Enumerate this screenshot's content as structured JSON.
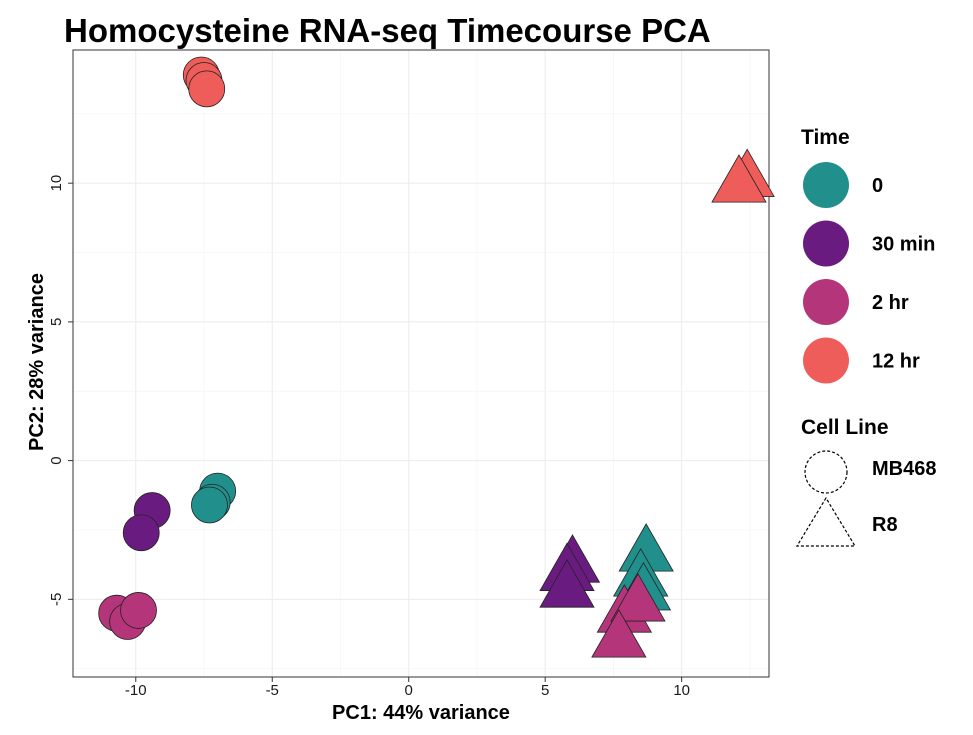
{
  "chart_data": {
    "type": "scatter",
    "title": "Homocysteine RNA-seq Timecourse PCA",
    "xlabel": "PC1: 44% variance",
    "ylabel": "PC2: 28% variance",
    "xlim": [
      -12.3,
      13.2
    ],
    "ylim": [
      -7.8,
      14.8
    ],
    "xticks": [
      -10,
      -5,
      0,
      5,
      10
    ],
    "xtick_labels": [
      "-10",
      "-5",
      "0",
      "5",
      "10"
    ],
    "yticks": [
      -5,
      0,
      5,
      10
    ],
    "ytick_labels": [
      "-5",
      "0",
      "5",
      "10"
    ],
    "grid": true,
    "colors": {
      "0": "#21908C",
      "30 min": "#6A1B80",
      "2 hr": "#B5357A",
      "12 hr": "#EE5D5A"
    },
    "legend": {
      "placement": "right",
      "time_title": "Time",
      "time_entries": [
        "0",
        "30 min",
        "2 hr",
        "12 hr"
      ],
      "shape_title": "Cell Line",
      "shape_entries": [
        {
          "label": "MB468",
          "shape": "circle"
        },
        {
          "label": "R8",
          "shape": "triangle"
        }
      ]
    },
    "points": [
      {
        "time": "12 hr",
        "cell_line": "MB468",
        "x": -7.6,
        "y": 13.9
      },
      {
        "time": "12 hr",
        "cell_line": "MB468",
        "x": -7.5,
        "y": 13.7
      },
      {
        "time": "12 hr",
        "cell_line": "MB468",
        "x": -7.4,
        "y": 13.4
      },
      {
        "time": "12 hr",
        "cell_line": "R8",
        "x": 12.4,
        "y": 10.1
      },
      {
        "time": "12 hr",
        "cell_line": "R8",
        "x": 12.1,
        "y": 9.9
      },
      {
        "time": "0",
        "cell_line": "MB468",
        "x": -7.0,
        "y": -1.1
      },
      {
        "time": "0",
        "cell_line": "MB468",
        "x": -7.2,
        "y": -1.5
      },
      {
        "time": "0",
        "cell_line": "MB468",
        "x": -7.3,
        "y": -1.6
      },
      {
        "time": "30 min",
        "cell_line": "MB468",
        "x": -9.4,
        "y": -1.8
      },
      {
        "time": "30 min",
        "cell_line": "MB468",
        "x": -9.8,
        "y": -2.6
      },
      {
        "time": "2 hr",
        "cell_line": "MB468",
        "x": -10.7,
        "y": -5.5
      },
      {
        "time": "2 hr",
        "cell_line": "MB468",
        "x": -10.3,
        "y": -5.8
      },
      {
        "time": "2 hr",
        "cell_line": "MB468",
        "x": -9.9,
        "y": -5.4
      },
      {
        "time": "30 min",
        "cell_line": "R8",
        "x": 6.0,
        "y": -3.8
      },
      {
        "time": "30 min",
        "cell_line": "R8",
        "x": 5.8,
        "y": -4.1
      },
      {
        "time": "30 min",
        "cell_line": "R8",
        "x": 5.8,
        "y": -4.7
      },
      {
        "time": "0",
        "cell_line": "R8",
        "x": 8.7,
        "y": -3.4
      },
      {
        "time": "0",
        "cell_line": "R8",
        "x": 8.5,
        "y": -4.3
      },
      {
        "time": "0",
        "cell_line": "R8",
        "x": 8.6,
        "y": -4.8
      },
      {
        "time": "2 hr",
        "cell_line": "R8",
        "x": 7.9,
        "y": -5.6
      },
      {
        "time": "2 hr",
        "cell_line": "R8",
        "x": 8.4,
        "y": -5.2
      },
      {
        "time": "2 hr",
        "cell_line": "R8",
        "x": 7.7,
        "y": -6.5
      }
    ]
  }
}
